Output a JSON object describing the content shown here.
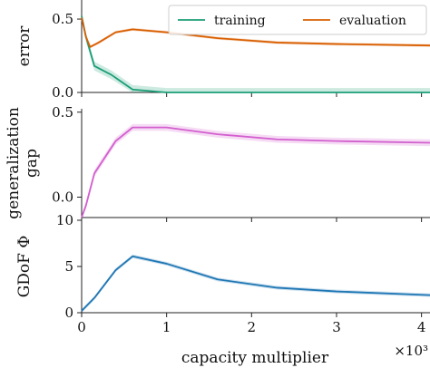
{
  "chart_data": [
    {
      "type": "line",
      "panel": "top",
      "ylabel": "error",
      "xlim": [
        0,
        4100
      ],
      "ylim": [
        0,
        0.63
      ],
      "yticks": [
        0.0,
        0.5
      ],
      "ytick_labels": [
        "0.0",
        "0.5"
      ],
      "legend": {
        "placement": "top-right",
        "columns": 2
      },
      "series": [
        {
          "name": "training",
          "color": "#1b9e77",
          "x": [
            0,
            50,
            150,
            350,
            600,
            1000,
            1600,
            2300,
            3000,
            4100
          ],
          "y": [
            0.52,
            0.38,
            0.18,
            0.12,
            0.02,
            0.0,
            0.0,
            0.0,
            0.0,
            0.0
          ],
          "band": 0.03
        },
        {
          "name": "evaluation",
          "color": "#d95f02",
          "x": [
            0,
            50,
            100,
            200,
            400,
            600,
            1000,
            1600,
            2300,
            3000,
            4100
          ],
          "y": [
            0.51,
            0.38,
            0.31,
            0.34,
            0.41,
            0.43,
            0.41,
            0.37,
            0.34,
            0.33,
            0.32
          ],
          "band": 0.01
        }
      ]
    },
    {
      "type": "line",
      "panel": "middle",
      "ylabel": "generalization gap",
      "ylabel_lines": [
        "generalization",
        "gap"
      ],
      "xlim": [
        0,
        4100
      ],
      "ylim": [
        -0.12,
        0.52
      ],
      "yticks": [
        0.0,
        0.5
      ],
      "ytick_labels": [
        "0.0",
        "0.5"
      ],
      "series": [
        {
          "name": "",
          "color": "#d35fcf",
          "x": [
            0,
            50,
            150,
            400,
            600,
            1000,
            1600,
            2300,
            3000,
            4100
          ],
          "y": [
            -0.12,
            -0.05,
            0.14,
            0.33,
            0.41,
            0.41,
            0.37,
            0.34,
            0.33,
            0.32
          ],
          "band": 0.02
        }
      ]
    },
    {
      "type": "line",
      "panel": "bottom",
      "ylabel": "GDoF  Φ",
      "xlabel": "capacity multiplier",
      "x_offset_label": "×10³",
      "xlim": [
        0,
        4100
      ],
      "ylim": [
        0,
        10
      ],
      "yticks": [
        0,
        5,
        10
      ],
      "ytick_labels": [
        "0",
        "5",
        "10"
      ],
      "xticks": [
        0,
        1000,
        2000,
        3000,
        4000
      ],
      "xtick_labels": [
        "0",
        "1",
        "2",
        "3",
        "4"
      ],
      "series": [
        {
          "name": "",
          "color": "#1f77b4",
          "x": [
            0,
            150,
            400,
            600,
            1000,
            1600,
            2300,
            3000,
            4100
          ],
          "y": [
            0.2,
            1.6,
            4.6,
            6.1,
            5.3,
            3.6,
            2.7,
            2.3,
            1.9
          ],
          "band": 0.2
        }
      ]
    }
  ]
}
